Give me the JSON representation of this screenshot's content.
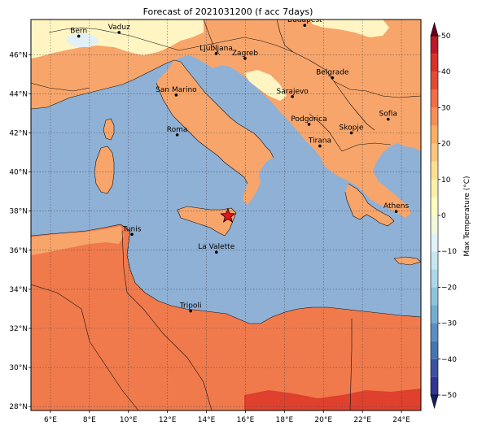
{
  "title": "Forecast of 2021031200 (f acc 7days)",
  "map": {
    "lon_range": [
      5,
      25
    ],
    "lat_range": [
      27.8,
      47.8
    ],
    "lon_ticks": [
      {
        "value": 6,
        "label": "6°E"
      },
      {
        "value": 8,
        "label": "8°E"
      },
      {
        "value": 10,
        "label": "10°E"
      },
      {
        "value": 12,
        "label": "12°E"
      },
      {
        "value": 14,
        "label": "14°E"
      },
      {
        "value": 16,
        "label": "16°E"
      },
      {
        "value": 18,
        "label": "18°E"
      },
      {
        "value": 20,
        "label": "20°E"
      },
      {
        "value": 22,
        "label": "22°E"
      },
      {
        "value": 24,
        "label": "24°E"
      }
    ],
    "lat_ticks": [
      {
        "value": 28,
        "label": "28°N"
      },
      {
        "value": 30,
        "label": "30°N"
      },
      {
        "value": 32,
        "label": "32°N"
      },
      {
        "value": 34,
        "label": "34°N"
      },
      {
        "value": 36,
        "label": "36°N"
      },
      {
        "value": 38,
        "label": "38°N"
      },
      {
        "value": 40,
        "label": "40°N"
      },
      {
        "value": 42,
        "label": "42°N"
      },
      {
        "value": 44,
        "label": "44°N"
      },
      {
        "value": 46,
        "label": "46°N"
      }
    ],
    "grid": true,
    "cities": [
      {
        "name": "Bern",
        "lon": 7.45,
        "lat": 46.95
      },
      {
        "name": "Vaduz",
        "lon": 9.52,
        "lat": 47.14
      },
      {
        "name": "Budapest",
        "lon": 19.04,
        "lat": 47.5
      },
      {
        "name": "Ljubljana",
        "lon": 14.5,
        "lat": 46.06
      },
      {
        "name": "Zagreb",
        "lon": 15.98,
        "lat": 45.81
      },
      {
        "name": "Belgrade",
        "lon": 20.46,
        "lat": 44.82
      },
      {
        "name": "San Marino",
        "lon": 12.45,
        "lat": 43.94
      },
      {
        "name": "Sarajevo",
        "lon": 18.41,
        "lat": 43.86
      },
      {
        "name": "Sofia",
        "lon": 23.32,
        "lat": 42.7
      },
      {
        "name": "Roma",
        "lon": 12.5,
        "lat": 41.9
      },
      {
        "name": "Podgorica",
        "lon": 19.26,
        "lat": 42.44
      },
      {
        "name": "Skopje",
        "lon": 21.43,
        "lat": 42.0
      },
      {
        "name": "Tirana",
        "lon": 19.82,
        "lat": 41.33
      },
      {
        "name": "Athens",
        "lon": 23.73,
        "lat": 37.98
      },
      {
        "name": "Tunis",
        "lon": 10.18,
        "lat": 36.81
      },
      {
        "name": "La Valette",
        "lon": 14.51,
        "lat": 35.9
      },
      {
        "name": "Tripoli",
        "lon": 13.19,
        "lat": 32.89
      }
    ],
    "marker": {
      "lon": 15.1,
      "lat": 37.75,
      "color": "#e8141c"
    }
  },
  "colorbar": {
    "label": "Max Temperature (°C)",
    "levels": [
      -50,
      -45,
      -40,
      -35,
      -30,
      -25,
      -20,
      -15,
      -10,
      -5,
      0,
      5,
      10,
      15,
      20,
      25,
      30,
      35,
      40,
      45,
      50
    ],
    "tick_values": [
      -50,
      -40,
      -30,
      -20,
      -10,
      0,
      10,
      20,
      30,
      40,
      50
    ],
    "tick_labels": [
      "−50",
      "−40",
      "−30",
      "−20",
      "−10",
      "0",
      "10",
      "20",
      "30",
      "40",
      "50"
    ],
    "colors": [
      "#313695",
      "#3a51a3",
      "#4575b4",
      "#5b8fc2",
      "#74add1",
      "#8fc3dd",
      "#abd9e9",
      "#c6e6f0",
      "#e0f3f8",
      "#f1f9da",
      "#ffffbf",
      "#fff0a8",
      "#fee090",
      "#fdc57c",
      "#fdae61",
      "#f98e52",
      "#f46d43",
      "#e34a33",
      "#d73027",
      "#be1826",
      "#a50026"
    ],
    "under_color": "#17205f",
    "over_color": "#67001f"
  },
  "fields": {
    "sea_color": "#8fb1d6",
    "land_lowland_color": "#f7a56b",
    "land_warm_color": "#f07a4c",
    "land_hot_color": "#e0402e",
    "land_cool_color": "#fff5c2",
    "land_cold_color": "#e0f0f6"
  }
}
